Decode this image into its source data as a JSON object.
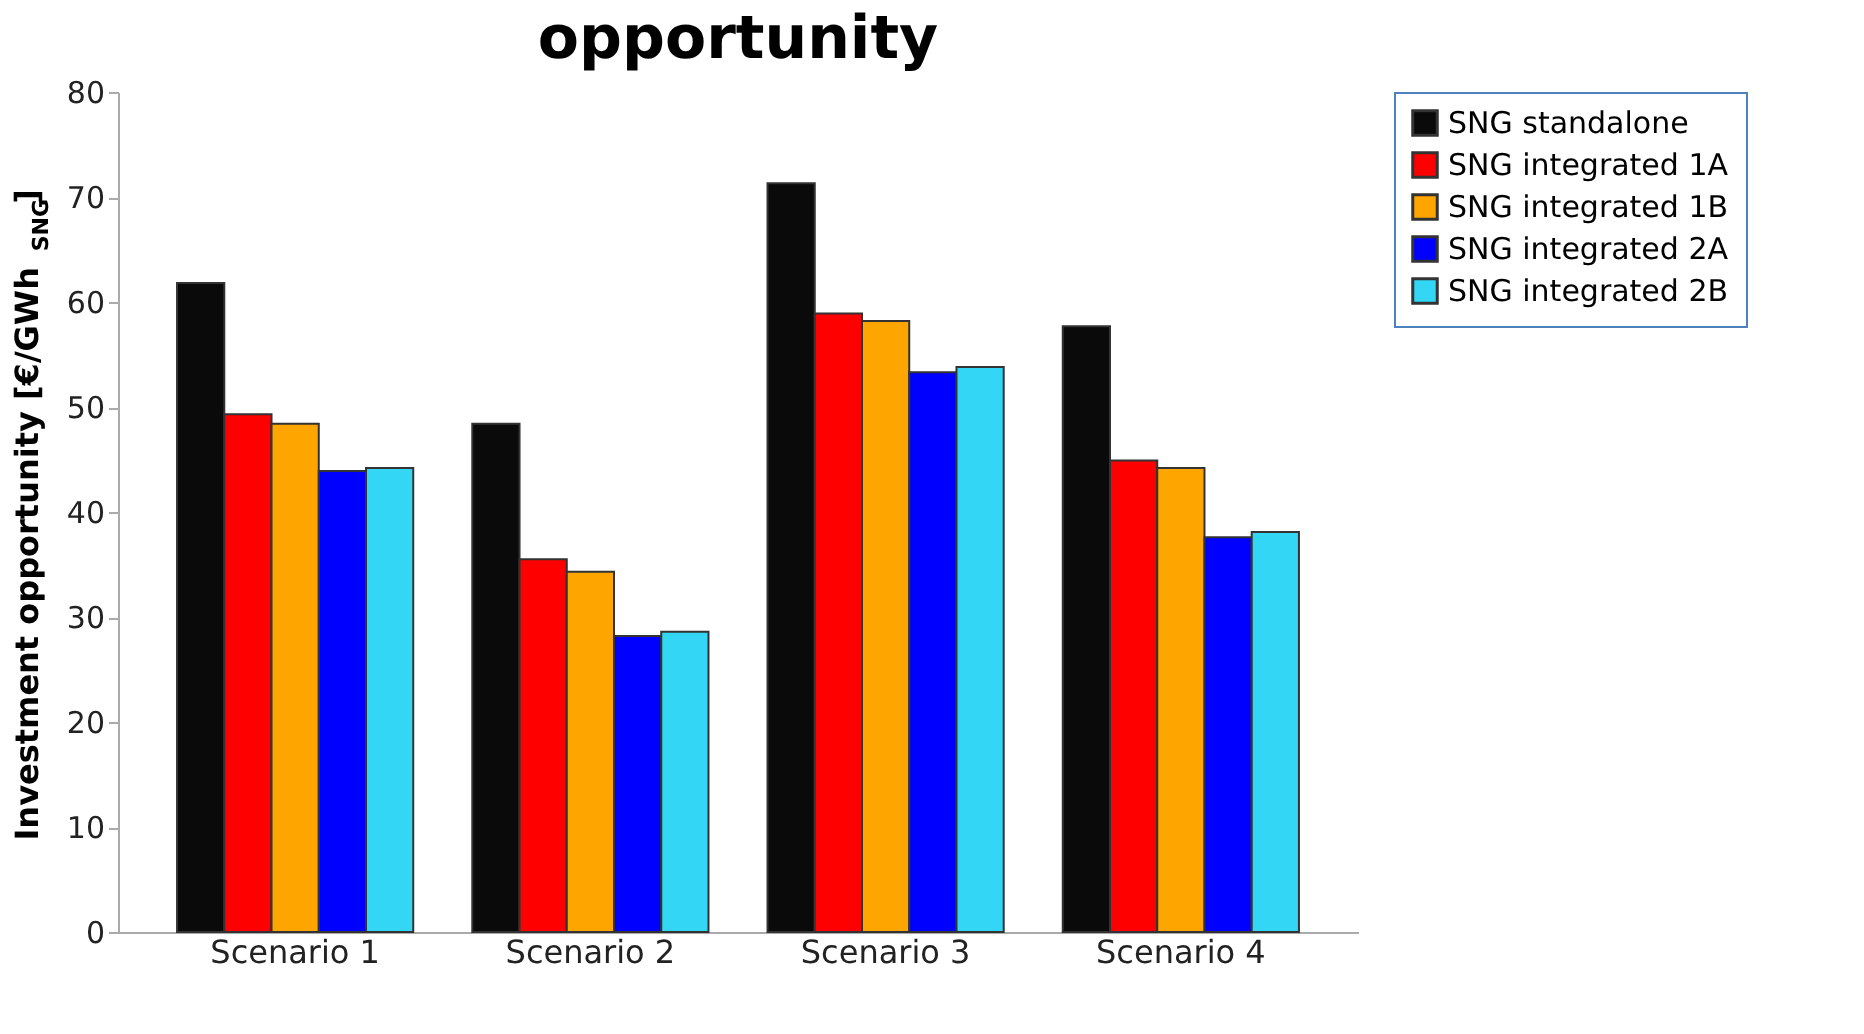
{
  "chart_data": {
    "type": "bar",
    "title": "opportunity",
    "ylabel": "Investment opportunity [€/GWh$_{SNG}$]",
    "categories": [
      "Scenario 1",
      "Scenario 2",
      "Scenario 3",
      "Scenario 4"
    ],
    "series": [
      {
        "name": "SNG standalone",
        "color": "#0a0a0a",
        "values": [
          61.8,
          48.4,
          71.3,
          57.7
        ]
      },
      {
        "name": "SNG integrated 1A",
        "color": "#ff0000",
        "values": [
          49.3,
          35.5,
          58.9,
          44.9
        ]
      },
      {
        "name": "SNG integrated 1B",
        "color": "#ffa500",
        "values": [
          48.4,
          34.3,
          58.2,
          44.2
        ]
      },
      {
        "name": "SNG integrated 2A",
        "color": "#0000ff",
        "values": [
          43.9,
          28.2,
          53.3,
          37.6
        ]
      },
      {
        "name": "SNG integrated 2B",
        "color": "#33d6f5",
        "values": [
          44.2,
          28.6,
          53.8,
          38.1
        ]
      }
    ],
    "ylim": [
      0,
      80
    ],
    "yticks": [
      0,
      10,
      20,
      30,
      40,
      50,
      60,
      70,
      80
    ],
    "grid": false,
    "legend": "right"
  }
}
